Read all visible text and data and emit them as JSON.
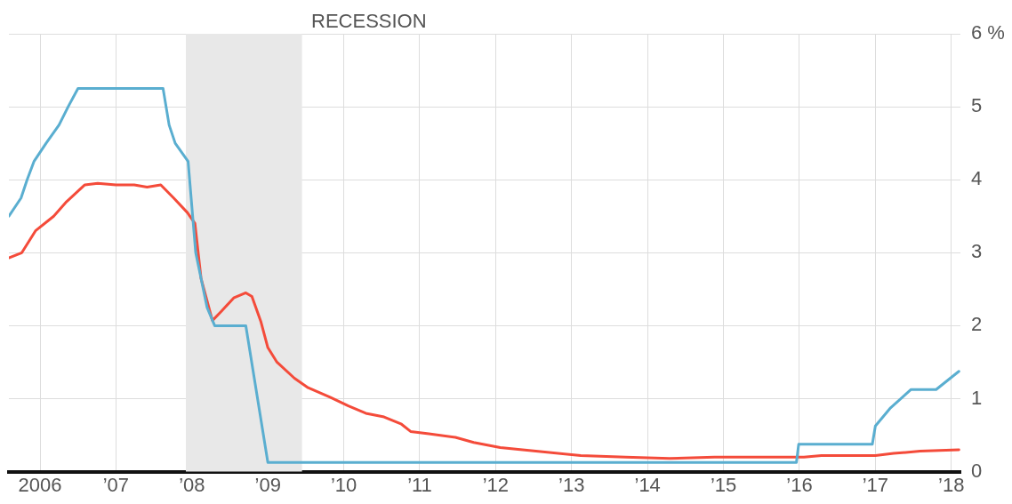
{
  "chart_data": {
    "type": "line",
    "x": [
      2005.59,
      2005.75,
      2005.83,
      2005.92,
      2006.08,
      2006.25,
      2006.37,
      2006.5,
      2007.62,
      2007.7,
      2007.78,
      2007.95,
      2008.05,
      2008.2,
      2008.3,
      2008.71,
      2009.0,
      2015.96,
      2015.99,
      2016.96,
      2017.0,
      2017.2,
      2017.47,
      2017.8,
      2018.1
    ],
    "series": [
      {
        "color": "#5aaed0",
        "values": [
          3.5,
          3.75,
          4.0,
          4.25,
          4.5,
          4.75,
          5.0,
          5.25,
          5.25,
          4.75,
          4.5,
          4.25,
          3.0,
          2.25,
          2.0,
          2.0,
          0.125,
          0.125,
          0.375,
          0.375,
          0.625,
          0.875,
          1.125,
          1.125,
          1.375
        ]
      },
      {
        "color": "#f44b3a",
        "x": [
          2005.59,
          2005.76,
          2005.94,
          2006.18,
          2006.35,
          2006.59,
          2006.76,
          2007.0,
          2007.24,
          2007.41,
          2007.59,
          2007.76,
          2007.94,
          2008.04,
          2008.12,
          2008.27,
          2008.39,
          2008.55,
          2008.71,
          2008.79,
          2008.91,
          2009.0,
          2009.12,
          2009.35,
          2009.53,
          2009.82,
          2010.06,
          2010.29,
          2010.53,
          2010.76,
          2010.88,
          2011.12,
          2011.47,
          2011.71,
          2012.06,
          2012.53,
          2013.12,
          2013.71,
          2014.29,
          2014.88,
          2016.06,
          2016.29,
          2017.0,
          2017.24,
          2017.59,
          2018.1
        ],
        "values": [
          2.93,
          3.0,
          3.3,
          3.5,
          3.7,
          3.93,
          3.95,
          3.93,
          3.93,
          3.9,
          3.93,
          3.75,
          3.55,
          3.4,
          2.65,
          2.07,
          2.2,
          2.38,
          2.45,
          2.4,
          2.05,
          1.7,
          1.5,
          1.28,
          1.15,
          1.02,
          0.9,
          0.8,
          0.75,
          0.65,
          0.55,
          0.52,
          0.47,
          0.4,
          0.33,
          0.28,
          0.22,
          0.2,
          0.18,
          0.2,
          0.2,
          0.22,
          0.22,
          0.25,
          0.28,
          0.3
        ]
      }
    ],
    "xlim": [
      2005.59,
      2018.12
    ],
    "xticks": [
      {
        "value": 2006,
        "label": "2006"
      },
      {
        "value": 2007,
        "label": "’07"
      },
      {
        "value": 2008,
        "label": "’08"
      },
      {
        "value": 2009,
        "label": "’09"
      },
      {
        "value": 2010,
        "label": "’10"
      },
      {
        "value": 2011,
        "label": "’11"
      },
      {
        "value": 2012,
        "label": "’12"
      },
      {
        "value": 2013,
        "label": "’13"
      },
      {
        "value": 2014,
        "label": "’14"
      },
      {
        "value": 2015,
        "label": "’15"
      },
      {
        "value": 2016,
        "label": "’16"
      },
      {
        "value": 2017,
        "label": "’17"
      },
      {
        "value": 2018,
        "label": "’18"
      }
    ],
    "ylim": [
      0,
      6
    ],
    "yticks": [
      0,
      1,
      2,
      3,
      4,
      5,
      {
        "value": 6,
        "label": "6 %"
      }
    ],
    "bands": [
      {
        "axis": "x",
        "from": 2007.92,
        "to": 2009.45,
        "label": "RECESSION",
        "color": "#e8e8e8"
      }
    ],
    "grid": true,
    "legend": false,
    "marker": "none",
    "line_style": "solid"
  }
}
